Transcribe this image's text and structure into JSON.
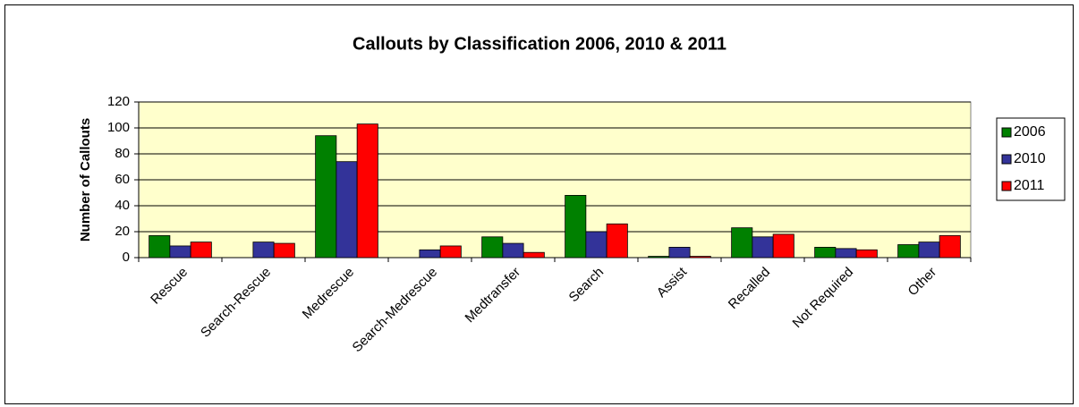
{
  "chart_data": {
    "type": "bar",
    "title": "Callouts by Classification 2006, 2010 & 2011",
    "y_label": "Number of Callouts",
    "categories": [
      "Rescue",
      "Search-Rescue",
      "Medrescue",
      "Search-Medrescue",
      "Medtransfer",
      "Search",
      "Assist",
      "Recalled",
      "Not Required",
      "Other"
    ],
    "series": [
      {
        "name": "2006",
        "color": "#008000",
        "values": [
          17,
          0,
          94,
          0,
          16,
          48,
          1,
          23,
          8,
          10
        ]
      },
      {
        "name": "2010",
        "color": "#333399",
        "values": [
          9,
          12,
          74,
          6,
          11,
          20,
          8,
          16,
          7,
          12
        ]
      },
      {
        "name": "2011",
        "color": "#ff0000",
        "values": [
          12,
          11,
          103,
          9,
          4,
          26,
          1,
          18,
          6,
          17
        ]
      }
    ],
    "ylim": [
      0,
      120
    ],
    "yticks": [
      0,
      20,
      40,
      60,
      80,
      100,
      120
    ],
    "grid": true,
    "legend": "right"
  }
}
